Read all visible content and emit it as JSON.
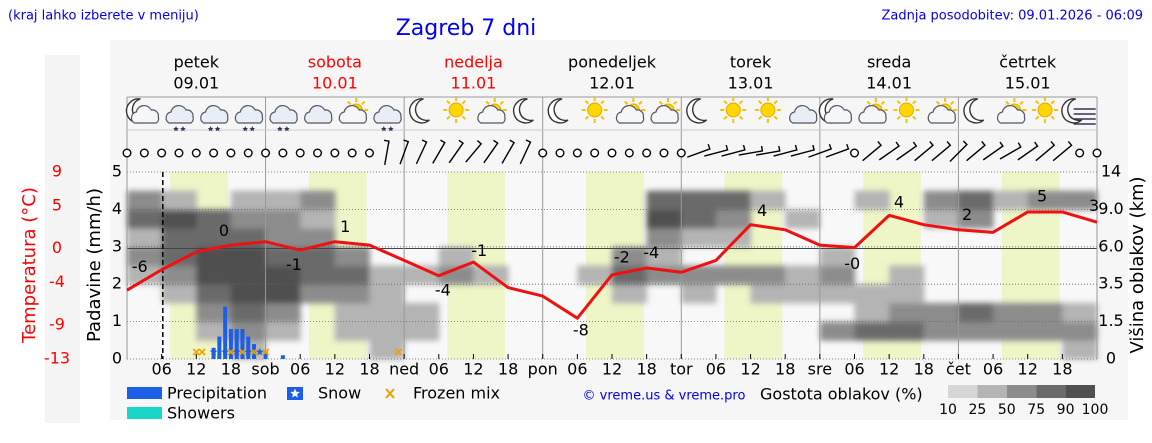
{
  "chart_data": {
    "type": "meteogram",
    "title": "Zagreb 7 dni",
    "note": "(kraj lahko izberete v meniju)",
    "updated": "Zadnja posodobitev: 09.01.2026 - 06:09",
    "credit": "© vreme.us & vreme.pro",
    "days": [
      {
        "name": "petek",
        "date": "09.01",
        "color": "#000000"
      },
      {
        "name": "sobota",
        "date": "10.01",
        "color": "#ff0000"
      },
      {
        "name": "nedelja",
        "date": "11.01",
        "color": "#ff0000"
      },
      {
        "name": "ponedeljek",
        "date": "12.01",
        "color": "#000000"
      },
      {
        "name": "torek",
        "date": "13.01",
        "color": "#000000"
      },
      {
        "name": "sreda",
        "date": "14.01",
        "color": "#000000"
      },
      {
        "name": "četrtek",
        "date": "15.01",
        "color": "#000000"
      }
    ],
    "xlim": [
      0,
      168
    ],
    "xticks": [
      {
        "value": 6,
        "label": "06"
      },
      {
        "value": 12,
        "label": "12"
      },
      {
        "value": 18,
        "label": "18"
      },
      {
        "value": 24,
        "label": "sob"
      },
      {
        "value": 30,
        "label": "06"
      },
      {
        "value": 36,
        "label": "12"
      },
      {
        "value": 42,
        "label": "18"
      },
      {
        "value": 48,
        "label": "ned"
      },
      {
        "value": 54,
        "label": "06"
      },
      {
        "value": 60,
        "label": "12"
      },
      {
        "value": 66,
        "label": "18"
      },
      {
        "value": 72,
        "label": "pon"
      },
      {
        "value": 78,
        "label": "06"
      },
      {
        "value": 84,
        "label": "12"
      },
      {
        "value": 90,
        "label": "18"
      },
      {
        "value": 96,
        "label": "tor"
      },
      {
        "value": 102,
        "label": "06"
      },
      {
        "value": 108,
        "label": "12"
      },
      {
        "value": 114,
        "label": "18"
      },
      {
        "value": 120,
        "label": "sre"
      },
      {
        "value": 126,
        "label": "06"
      },
      {
        "value": 132,
        "label": "12"
      },
      {
        "value": 138,
        "label": "18"
      },
      {
        "value": 144,
        "label": "čet"
      },
      {
        "value": 150,
        "label": "06"
      },
      {
        "value": 156,
        "label": "12"
      },
      {
        "value": 162,
        "label": "18"
      }
    ],
    "now": 6.2,
    "daylight": [
      7.5,
      17.5
    ],
    "ylabel": "Padavine (mm/h)",
    "ylim": [
      0,
      5
    ],
    "yticks": [
      0,
      1,
      2,
      3,
      4,
      5
    ],
    "grid": true,
    "y2label": "Temperatura (°C)",
    "y2lim": [
      -13,
      9
    ],
    "y2ticks": [
      9,
      5,
      0,
      -4,
      -9,
      -13
    ],
    "y2color": "#ff0000",
    "y3label": "Višina oblakov (km)",
    "y3ticks": [
      14,
      {
        "value": 9,
        "label": "9.0"
      },
      {
        "value": 6,
        "label": "6.0"
      },
      3.5,
      1.5,
      0
    ],
    "temperature": {
      "color": "#ee1111",
      "x": [
        0,
        6,
        12,
        18,
        24,
        30,
        36,
        42,
        48,
        54,
        60,
        66,
        72,
        78,
        84,
        90,
        96,
        102,
        108,
        114,
        120,
        126,
        132,
        138,
        144,
        150,
        156,
        162,
        168
      ],
      "values": [
        -4.9,
        -2.5,
        -0.4,
        0.4,
        0.8,
        -0.2,
        0.8,
        0.4,
        -1.4,
        -3.2,
        -1.6,
        -4.6,
        -5.6,
        -8.2,
        -3.1,
        -2.3,
        -2.8,
        -1.4,
        2.8,
        2.2,
        0.4,
        0.1,
        3.9,
        2.8,
        2.2,
        1.9,
        4.3,
        4.3,
        3.1
      ]
    },
    "temp_labels": [
      {
        "label": "-6",
        "x": 2.2
      },
      {
        "label": "0",
        "x": 16.8
      },
      {
        "label": "-1",
        "x": 28.9
      },
      {
        "label": "1",
        "x": 37.8
      },
      {
        "label": "-4",
        "x": 54.7
      },
      {
        "label": "-1",
        "x": 61
      },
      {
        "label": "-8",
        "x": 78.6
      },
      {
        "label": "-2",
        "x": 85.7
      },
      {
        "label": "-4",
        "x": 90.8
      },
      {
        "label": "4",
        "x": 110
      },
      {
        "label": "-0",
        "x": 125.6
      },
      {
        "label": "4",
        "x": 133.7
      },
      {
        "label": "2",
        "x": 145.5
      },
      {
        "label": "5",
        "x": 158.5
      },
      {
        "label": "3",
        "x": 167.5
      }
    ],
    "precipitation": {
      "name": "Precipitation",
      "color": "#1a5fe6",
      "x": [
        15,
        16,
        17,
        18,
        19,
        20,
        21,
        22,
        24,
        27
      ],
      "values": [
        0.3,
        0.6,
        1.4,
        0.8,
        0.8,
        0.8,
        0.6,
        0.4,
        0.2,
        0.1
      ]
    },
    "showers": {
      "name": "Showers",
      "color": "#1ad6c6",
      "x": [],
      "values": []
    },
    "snow": {
      "name": "Snow",
      "color": "#1a5fe6",
      "x": [
        15,
        17,
        19,
        21,
        23
      ]
    },
    "frozen_mix": {
      "name": "Frozen mix",
      "color": "#f0a000",
      "x": [
        12,
        13,
        18,
        20,
        22,
        24,
        47
      ]
    },
    "clouds": {
      "title": "Gostota oblakov (%)",
      "step": 6,
      "levels": [
        10,
        25,
        50,
        75,
        90,
        100
      ],
      "colors": [
        "#d6d6d6",
        "#b4b4b4",
        "#8c8c8c",
        "#6a6a6a",
        "#505050"
      ],
      "cover": [
        [
          0,
          0,
          0,
          0,
          25,
          50,
          25,
          75,
          50,
          0
        ],
        [
          0,
          0,
          0,
          25,
          50,
          75,
          75,
          90,
          25,
          0
        ],
        [
          0,
          25,
          50,
          75,
          90,
          90,
          75,
          75,
          0,
          0
        ],
        [
          25,
          50,
          75,
          90,
          90,
          90,
          75,
          50,
          25,
          0
        ],
        [
          0,
          25,
          50,
          90,
          90,
          75,
          50,
          50,
          25,
          0
        ],
        [
          0,
          0,
          0,
          50,
          75,
          75,
          50,
          25,
          50,
          0
        ],
        [
          0,
          25,
          25,
          50,
          75,
          50,
          0,
          0,
          0,
          0
        ],
        [
          25,
          25,
          25,
          25,
          25,
          0,
          0,
          0,
          0,
          0
        ],
        [
          0,
          25,
          25,
          0,
          25,
          0,
          0,
          0,
          0,
          0
        ],
        [
          0,
          0,
          0,
          0,
          50,
          25,
          0,
          0,
          0,
          0
        ],
        [
          0,
          0,
          0,
          0,
          25,
          0,
          0,
          0,
          0,
          0
        ],
        [
          0,
          0,
          0,
          0,
          0,
          0,
          0,
          0,
          0,
          0
        ],
        [
          0,
          0,
          0,
          0,
          0,
          0,
          0,
          0,
          0,
          0
        ],
        [
          0,
          0,
          0,
          0,
          25,
          0,
          0,
          0,
          0,
          0
        ],
        [
          0,
          0,
          0,
          25,
          75,
          50,
          0,
          0,
          0,
          0
        ],
        [
          0,
          0,
          0,
          0,
          50,
          25,
          50,
          90,
          75,
          0
        ],
        [
          0,
          0,
          0,
          25,
          50,
          0,
          25,
          75,
          75,
          0
        ],
        [
          0,
          0,
          0,
          0,
          50,
          0,
          25,
          50,
          75,
          0
        ],
        [
          0,
          0,
          0,
          25,
          50,
          0,
          0,
          0,
          25,
          0
        ],
        [
          0,
          0,
          0,
          25,
          25,
          0,
          0,
          25,
          0,
          0
        ],
        [
          0,
          50,
          0,
          25,
          50,
          25,
          0,
          0,
          0,
          0
        ],
        [
          0,
          75,
          25,
          25,
          0,
          0,
          0,
          0,
          25,
          0
        ],
        [
          0,
          75,
          50,
          25,
          25,
          0,
          0,
          0,
          0,
          0
        ],
        [
          0,
          50,
          50,
          0,
          0,
          0,
          0,
          25,
          50,
          0
        ],
        [
          0,
          50,
          75,
          0,
          0,
          0,
          0,
          50,
          75,
          0
        ],
        [
          0,
          50,
          50,
          0,
          0,
          0,
          0,
          0,
          25,
          0
        ],
        [
          0,
          50,
          50,
          0,
          0,
          0,
          0,
          0,
          50,
          0
        ],
        [
          25,
          50,
          25,
          0,
          0,
          0,
          0,
          0,
          50,
          0
        ]
      ]
    },
    "weather_icons": [
      "moon-cloud",
      "cloud-snow",
      "cloud-snow",
      "cloud-snow",
      "cloud-snow",
      "cloud",
      "sun-cloud",
      "cloud-snow",
      "moon",
      "sun",
      "sun-cloud",
      "moon",
      "moon",
      "sun",
      "sun-cloud",
      "sun-cloud",
      "moon",
      "sun",
      "sun",
      "cloud",
      "moon-cloud",
      "sun-cloud",
      "sun",
      "sun-cloud",
      "moon",
      "sun-cloud",
      "sun",
      "moon-fog"
    ],
    "wind_dirs": [
      null,
      null,
      null,
      null,
      null,
      null,
      null,
      null,
      null,
      null,
      null,
      null,
      null,
      null,
      null,
      10,
      20,
      25,
      30,
      35,
      40,
      35,
      30,
      25,
      null,
      null,
      null,
      null,
      null,
      null,
      null,
      null,
      null,
      70,
      75,
      75,
      80,
      80,
      75,
      75,
      70,
      70,
      null,
      50,
      55,
      55,
      50,
      50,
      45,
      50,
      55,
      60,
      55,
      50,
      50,
      null,
      null
    ]
  }
}
